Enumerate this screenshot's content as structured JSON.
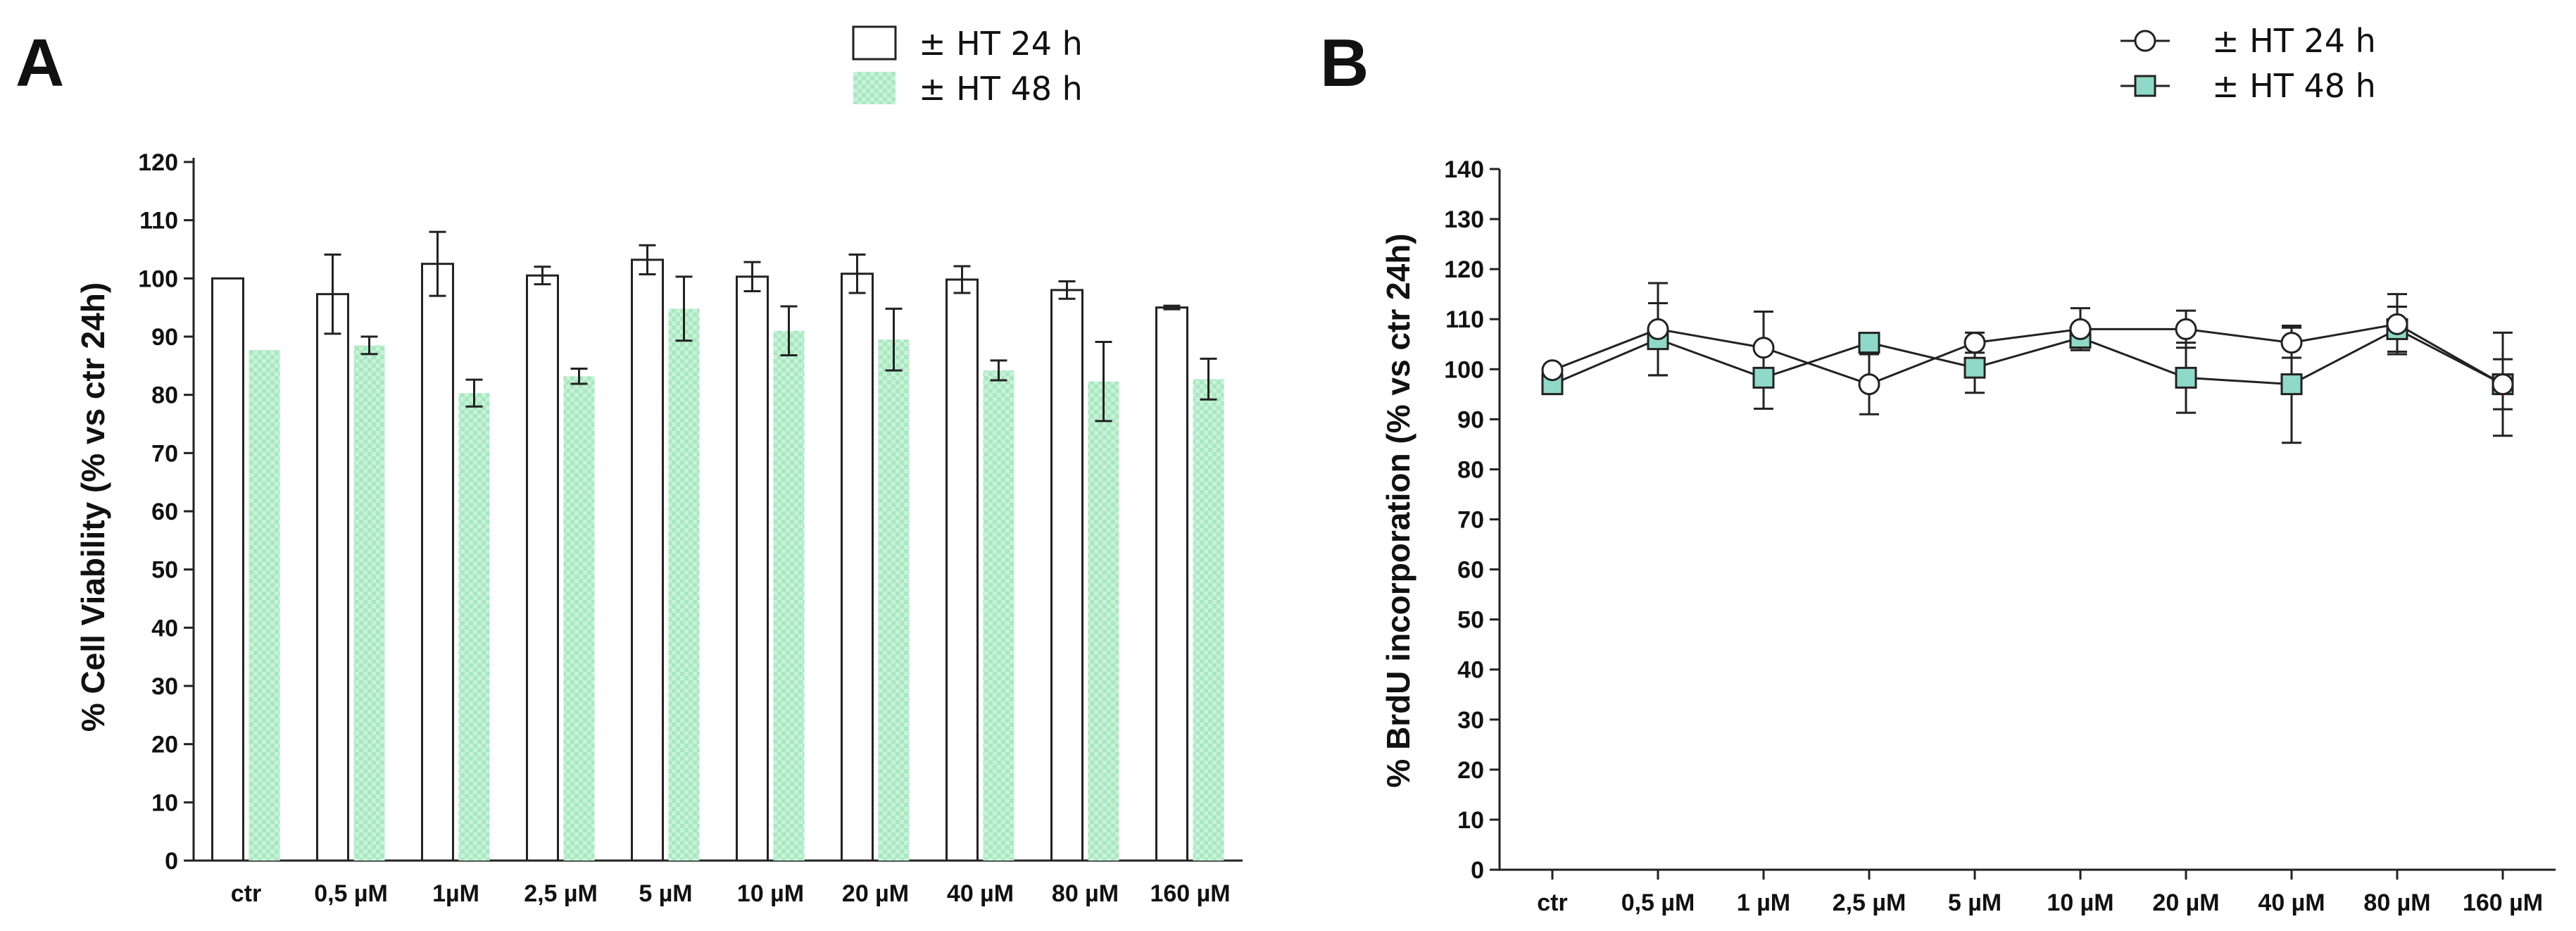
{
  "chart_data": [
    {
      "panel": "A",
      "type": "bar",
      "ylabel": "% Cell Viability (% vs ctr 24h)",
      "xlabel": "",
      "ylim": [
        0,
        120
      ],
      "yticks": [
        0,
        10,
        20,
        30,
        40,
        50,
        60,
        70,
        80,
        90,
        100,
        110,
        120
      ],
      "categories": [
        "ctr",
        "0,5 µM",
        "1µM",
        "2,5 µM",
        "5 µM",
        "10 µM",
        "20 µM",
        "40 µM",
        "80 µM",
        "160 µM"
      ],
      "series": [
        {
          "name": "± HT 24 h",
          "values": [
            100,
            97.3,
            102.5,
            100.5,
            103.2,
            100.3,
            100.8,
            99.8,
            98,
            95
          ],
          "errors": [
            0,
            6.8,
            5.5,
            1.5,
            2.5,
            2.5,
            3.3,
            2.3,
            1.5,
            0.3
          ]
        },
        {
          "name": "± HT 48 h",
          "values": [
            87.7,
            88.5,
            80.3,
            83.2,
            94.8,
            91,
            89.5,
            84.2,
            82.3,
            82.7
          ],
          "errors": [
            0,
            1.5,
            2.3,
            1.3,
            5.5,
            4.2,
            5.3,
            1.7,
            6.8,
            3.5
          ]
        }
      ],
      "legend": [
        "± HT 24 h",
        "± HT 48 h"
      ],
      "colors": {
        "bar24_fill": "#ffffff",
        "bar48_fill": "#c8f2d8",
        "bar48_check": "#a8e8c0",
        "stroke": "#222222"
      }
    },
    {
      "panel": "B",
      "type": "line",
      "ylabel": "% BrdU incorporation (% vs ctr 24h)",
      "xlabel": "",
      "ylim": [
        0,
        140
      ],
      "yticks": [
        0,
        10,
        20,
        30,
        40,
        50,
        60,
        70,
        80,
        90,
        100,
        110,
        120,
        130,
        140
      ],
      "categories": [
        "ctr",
        "0,5 µM",
        "1 µM",
        "2,5 µM",
        "5 µM",
        "10 µM",
        "20 µM",
        "40 µM",
        "80 µM",
        "160 µM"
      ],
      "series": [
        {
          "name": "± HT 24 h",
          "marker": "circle",
          "values": [
            99.8,
            108,
            104.3,
            97,
            105.3,
            108,
            108,
            105.3,
            109,
            97
          ],
          "errors": [
            0,
            9.2,
            7.2,
            6,
            2,
            4.2,
            3.7,
            3,
            6,
            5
          ]
        },
        {
          "name": "± HT 48 h",
          "marker": "square",
          "values": [
            97,
            106,
            98.3,
            105.3,
            100.3,
            106.3,
            98.3,
            97,
            108,
            97
          ],
          "errors": [
            0,
            7.2,
            6.2,
            1.5,
            5,
            2,
            7,
            11.7,
            4.5,
            10.3
          ]
        }
      ],
      "legend": [
        "± HT 24 h",
        "± HT 48 h"
      ],
      "colors": {
        "circle_fill": "#ffffff",
        "square_fill": "#8fd9c9",
        "stroke": "#222222"
      }
    }
  ]
}
